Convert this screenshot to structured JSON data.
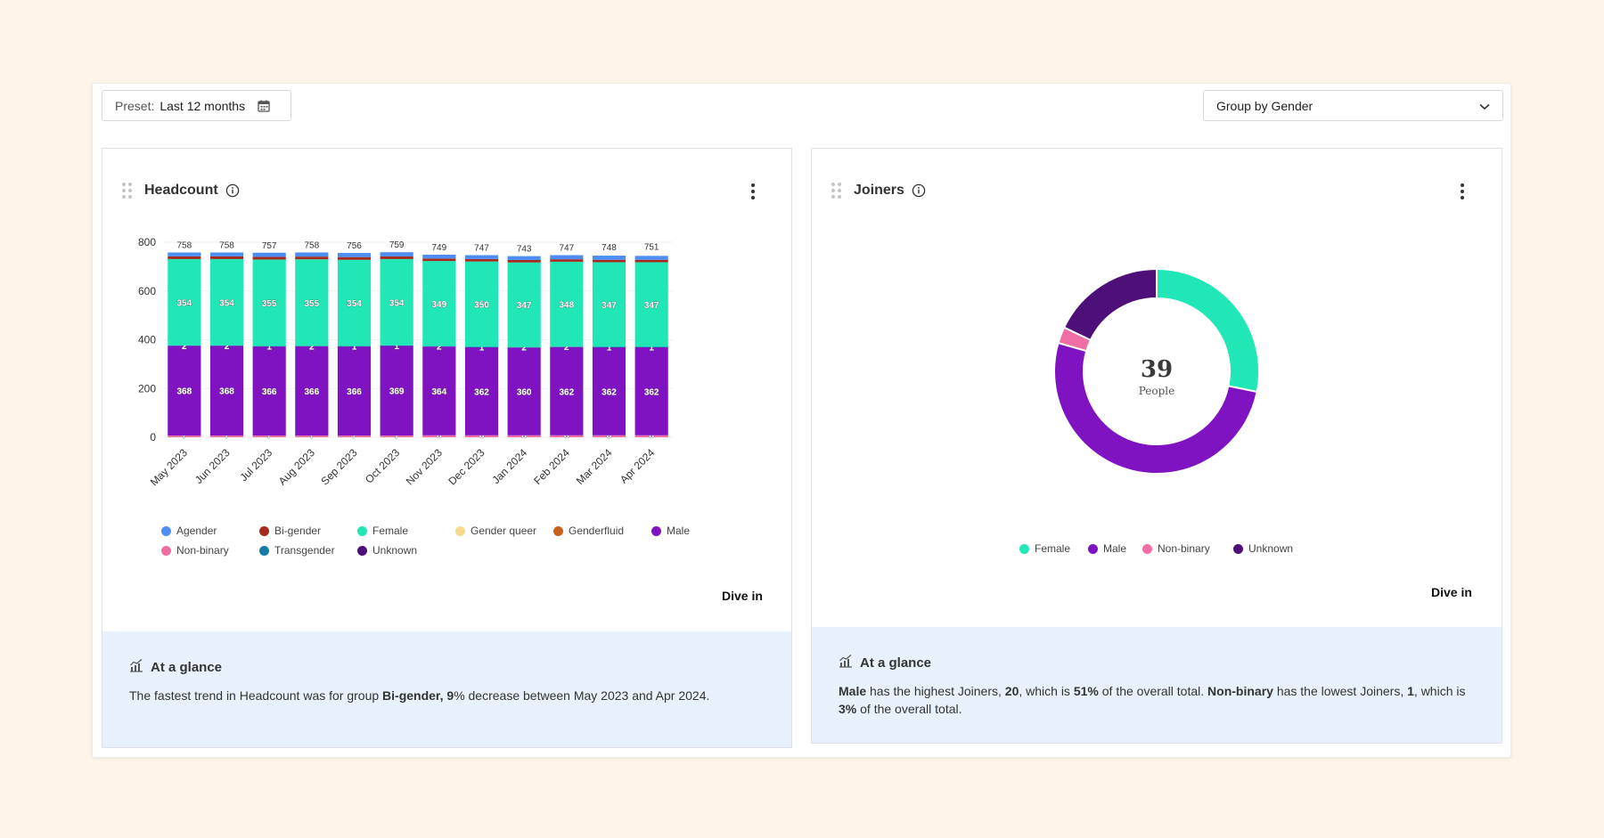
{
  "toolbar": {
    "preset_label": "Preset:",
    "preset_value": "Last 12 months",
    "groupby_value": "Group by Gender"
  },
  "headcount": {
    "title": "Headcount",
    "dive_in": "Dive in",
    "glance_title": "At a glance",
    "glance_parts": [
      "The fastest trend in Headcount was for group ",
      "Bi-gender, 9",
      "% decrease between May 2023 and Apr 2024."
    ]
  },
  "joiners": {
    "title": "Joiners",
    "dive_in": "Dive in",
    "center_value": "39",
    "center_label": "People",
    "glance_title": "At a glance",
    "glance_parts": [
      "Male",
      " has the highest Joiners, ",
      "20",
      ", which is ",
      "51%",
      " of the overall total. ",
      "Non-binary",
      " has the lowest Joiners, ",
      "1",
      ", which is ",
      "3%",
      " of the overall total."
    ]
  },
  "colors": {
    "Agender": "#4e8ef2",
    "Bi-gender": "#a52a1d",
    "Female": "#21e6b6",
    "Gender queer": "#f7d98b",
    "Genderfluid": "#c8601e",
    "Male": "#8013c1",
    "Non-binary": "#f06ea3",
    "Transgender": "#157aa6",
    "Unknown": "#4d1078"
  },
  "chart_data": [
    {
      "type": "bar",
      "stacked": true,
      "categories": [
        "May 2023",
        "Jun 2023",
        "Jul 2023",
        "Aug 2023",
        "Sep 2023",
        "Oct 2023",
        "Nov 2023",
        "Dec 2023",
        "Jan 2024",
        "Feb 2024",
        "Mar 2024",
        "Apr 2024"
      ],
      "ylim": [
        0,
        800
      ],
      "yticks": [
        0,
        200,
        400,
        600,
        800
      ],
      "totals": [
        758,
        758,
        757,
        758,
        756,
        759,
        749,
        747,
        743,
        747,
        748,
        751
      ],
      "series": [
        {
          "name": "Non-binary",
          "values": [
            7,
            7,
            7,
            7,
            7,
            7,
            8,
            8,
            8,
            8,
            8,
            8
          ]
        },
        {
          "name": "Male",
          "values": [
            368,
            368,
            366,
            366,
            366,
            369,
            364,
            362,
            360,
            362,
            362,
            362
          ]
        },
        {
          "name": "Transgender",
          "values": [
            2,
            2,
            1,
            2,
            1,
            1,
            2,
            1,
            2,
            2,
            1,
            1
          ]
        },
        {
          "name": "Female",
          "values": [
            354,
            354,
            355,
            355,
            354,
            354,
            349,
            350,
            347,
            348,
            347,
            347
          ]
        },
        {
          "name": "Bi-gender",
          "values": [
            11,
            11,
            11,
            11,
            11,
            11,
            10,
            10,
            10,
            10,
            10,
            10
          ]
        },
        {
          "name": "Agender",
          "values": [
            16,
            16,
            17,
            17,
            17,
            17,
            16,
            16,
            16,
            17,
            17,
            16
          ]
        }
      ],
      "legend": [
        "Agender",
        "Bi-gender",
        "Female",
        "Gender queer",
        "Genderfluid",
        "Male",
        "Non-binary",
        "Transgender",
        "Unknown"
      ],
      "grid": true
    },
    {
      "type": "pie",
      "donut": true,
      "categories": [
        "Female",
        "Male",
        "Non-binary",
        "Unknown"
      ],
      "values": [
        11,
        20,
        1,
        7
      ],
      "legend": [
        "Female",
        "Male",
        "Non-binary",
        "Unknown"
      ]
    }
  ]
}
